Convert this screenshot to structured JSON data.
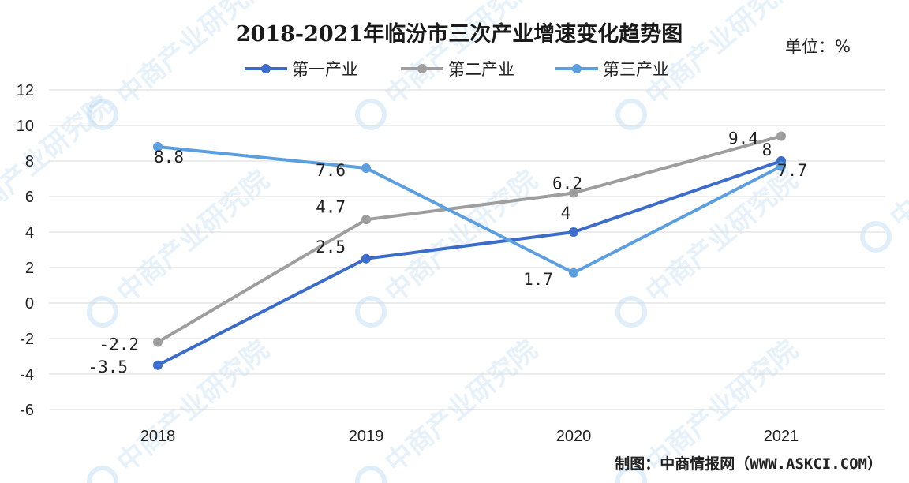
{
  "chart_data": {
    "type": "line",
    "title": "2018-2021年临汾市三次产业增速变化趋势图",
    "unit_label": "单位：%",
    "categories": [
      "2018",
      "2019",
      "2020",
      "2021"
    ],
    "ylim": [
      -6,
      12
    ],
    "yticks": [
      12,
      10,
      8,
      6,
      4,
      2,
      0,
      -2,
      -4,
      -6
    ],
    "grid": true,
    "legend_position": "top",
    "series": [
      {
        "name": "第一产业",
        "values": [
          -3.5,
          2.5,
          4,
          8
        ],
        "color": "#3b6cc9"
      },
      {
        "name": "第二产业",
        "values": [
          -2.2,
          4.7,
          6.2,
          9.4
        ],
        "color": "#9e9e9e"
      },
      {
        "name": "第三产业",
        "values": [
          8.8,
          7.6,
          1.7,
          7.7
        ],
        "color": "#5b9fe0"
      }
    ],
    "source": "制图：中商情报网（WWW.ASKCI.COM）"
  },
  "watermark": {
    "text": "中商产业研究院",
    "icon": "askci-logo-icon",
    "color": "#8fc3e8"
  }
}
